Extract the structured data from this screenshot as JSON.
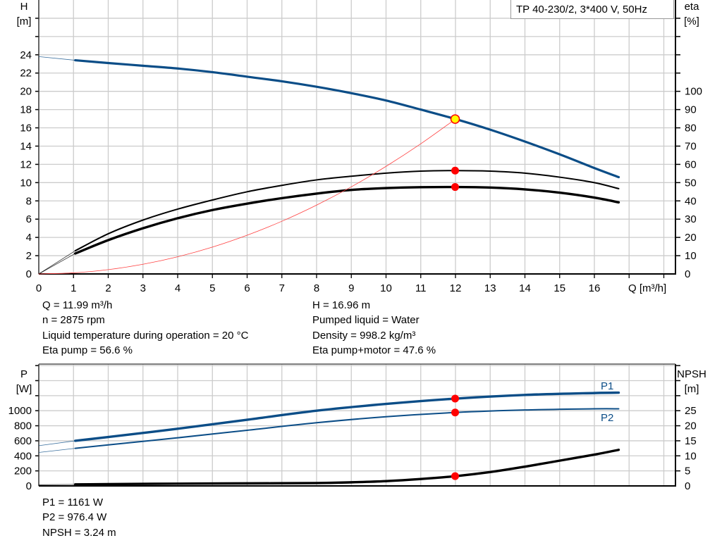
{
  "title": "TP 40-230/2, 3*400 V, 50Hz",
  "colors": {
    "head": "#0b4d87",
    "power": "#0b4d87",
    "efficiency": "#000000",
    "npsh": "#000000",
    "system": "#ff4040",
    "marker": "#ff0000",
    "duty_marker_fill": "#ffff00",
    "grid": "#cccccc"
  },
  "info_top_left": [
    "Q = 11.99 m³/h",
    "n = 2875 rpm",
    "Liquid temperature during operation = 20 °C",
    "Eta pump = 56.6 %"
  ],
  "info_top_right": [
    "H = 16.96 m",
    "Pumped liquid = Water",
    "Density = 998.2 kg/m³",
    "Eta pump+motor = 47.6 %"
  ],
  "info_bottom": [
    "P1 = 1161 W",
    "P2 = 976.4 W",
    "NPSH = 3.24 m"
  ],
  "chart_data": [
    {
      "type": "line",
      "xlabel": "Q [m³/h]",
      "ylabel_left": [
        "H",
        "[m]"
      ],
      "ylabel_right": [
        "eta",
        "[%]"
      ],
      "x_ticks": [
        0,
        1,
        2,
        3,
        4,
        5,
        6,
        7,
        8,
        9,
        10,
        11,
        12,
        13,
        14,
        15,
        16
      ],
      "y_left_ticks": [
        0,
        2,
        4,
        6,
        8,
        10,
        12,
        14,
        16,
        18,
        20,
        22,
        24
      ],
      "y_right_ticks": [
        0,
        10,
        20,
        30,
        40,
        50,
        60,
        70,
        80,
        90,
        100
      ],
      "xlim": [
        0,
        18.3
      ],
      "ylim_left": [
        0,
        30
      ],
      "ylim_right": [
        0,
        150
      ],
      "grid": true,
      "duty_point": {
        "Q": 11.99,
        "H": 16.96,
        "eta_pump": 56.6,
        "eta_pump_motor": 47.6
      },
      "series": [
        {
          "key": "H",
          "axis": "left",
          "extrapolated": [
            [
              0,
              23.8
            ],
            [
              1.05,
              23.4
            ]
          ],
          "x": [
            1.05,
            2,
            3,
            4,
            5,
            6,
            7,
            8,
            9,
            10,
            11,
            12,
            13,
            14,
            15,
            16,
            16.7
          ],
          "y": [
            23.4,
            23.1,
            22.8,
            22.5,
            22.1,
            21.6,
            21.1,
            20.5,
            19.8,
            19.0,
            18.0,
            16.96,
            15.8,
            14.5,
            13.1,
            11.6,
            10.6
          ]
        },
        {
          "key": "eta_pump",
          "axis": "right",
          "extrapolated": [
            [
              0,
              0
            ],
            [
              1.05,
              12.7
            ]
          ],
          "x": [
            1.05,
            2,
            3,
            4,
            5,
            6,
            7,
            8,
            9,
            10,
            11,
            12,
            13,
            14,
            15,
            16,
            16.7
          ],
          "y": [
            12.7,
            22,
            29.5,
            35.5,
            40.5,
            45,
            48.5,
            51.5,
            53.5,
            55.2,
            56.3,
            56.6,
            56.3,
            55.2,
            53,
            50,
            46.7
          ]
        },
        {
          "key": "eta_pump_motor",
          "axis": "right",
          "extrapolated": [
            [
              0,
              0
            ],
            [
              1.05,
              11.2
            ]
          ],
          "x": [
            1.05,
            2,
            3,
            4,
            5,
            6,
            7,
            8,
            9,
            10,
            11,
            12,
            13,
            14,
            15,
            16,
            16.7
          ],
          "y": [
            11.2,
            18.5,
            25,
            30.5,
            35,
            38.5,
            41.5,
            44,
            46,
            47,
            47.5,
            47.6,
            47.3,
            46.3,
            44.5,
            41.8,
            39.2
          ]
        },
        {
          "key": "system",
          "axis": "left",
          "x": [
            0,
            1,
            2,
            3,
            4,
            5,
            6,
            7,
            8,
            9,
            10,
            11,
            12
          ],
          "y": [
            0,
            0.12,
            0.47,
            1.06,
            1.88,
            2.94,
            4.24,
            5.77,
            7.54,
            9.54,
            11.78,
            14.25,
            16.96
          ]
        }
      ]
    },
    {
      "type": "line",
      "xlabel": "Q [m³/h]",
      "ylabel_left": [
        "P",
        "[W]"
      ],
      "ylabel_right": [
        "NPSH",
        "[m]"
      ],
      "y_left_ticks": [
        0,
        200,
        400,
        600,
        800,
        1000
      ],
      "y_right_ticks": [
        0,
        5,
        10,
        15,
        20,
        25
      ],
      "xlim": [
        0,
        18.3
      ],
      "ylim_left": [
        0,
        1620
      ],
      "ylim_right": [
        0,
        40.5
      ],
      "grid": true,
      "duty_point": {
        "Q": 11.99,
        "P1": 1161,
        "P2": 976.4,
        "NPSH": 3.24
      },
      "series": [
        {
          "key": "P1",
          "name": "P1",
          "axis": "left",
          "extrapolated": [
            [
              0,
              535
            ],
            [
              1.05,
              600
            ]
          ],
          "x": [
            1.05,
            2,
            4,
            6,
            8,
            10,
            12,
            14,
            16,
            16.7
          ],
          "y": [
            600,
            650,
            760,
            880,
            1000,
            1090,
            1161,
            1210,
            1235,
            1240
          ]
        },
        {
          "key": "P2",
          "name": "P2",
          "axis": "left",
          "extrapolated": [
            [
              0,
              445
            ],
            [
              1.05,
              500
            ]
          ],
          "x": [
            1.05,
            2,
            4,
            6,
            8,
            10,
            12,
            14,
            16,
            16.7
          ],
          "y": [
            500,
            545,
            640,
            740,
            840,
            920,
            976.4,
            1010,
            1025,
            1025
          ]
        },
        {
          "key": "NPSH",
          "axis": "right",
          "extrapolated": [
            [
              0,
              0.4
            ],
            [
              1.05,
              0.5
            ]
          ],
          "x": [
            1.05,
            2,
            4,
            6,
            8,
            9,
            10,
            11,
            12,
            13,
            14,
            15,
            16,
            16.7
          ],
          "y": [
            0.5,
            0.6,
            0.75,
            0.85,
            0.95,
            1.2,
            1.6,
            2.3,
            3.24,
            4.6,
            6.4,
            8.4,
            10.4,
            12
          ]
        }
      ]
    }
  ]
}
